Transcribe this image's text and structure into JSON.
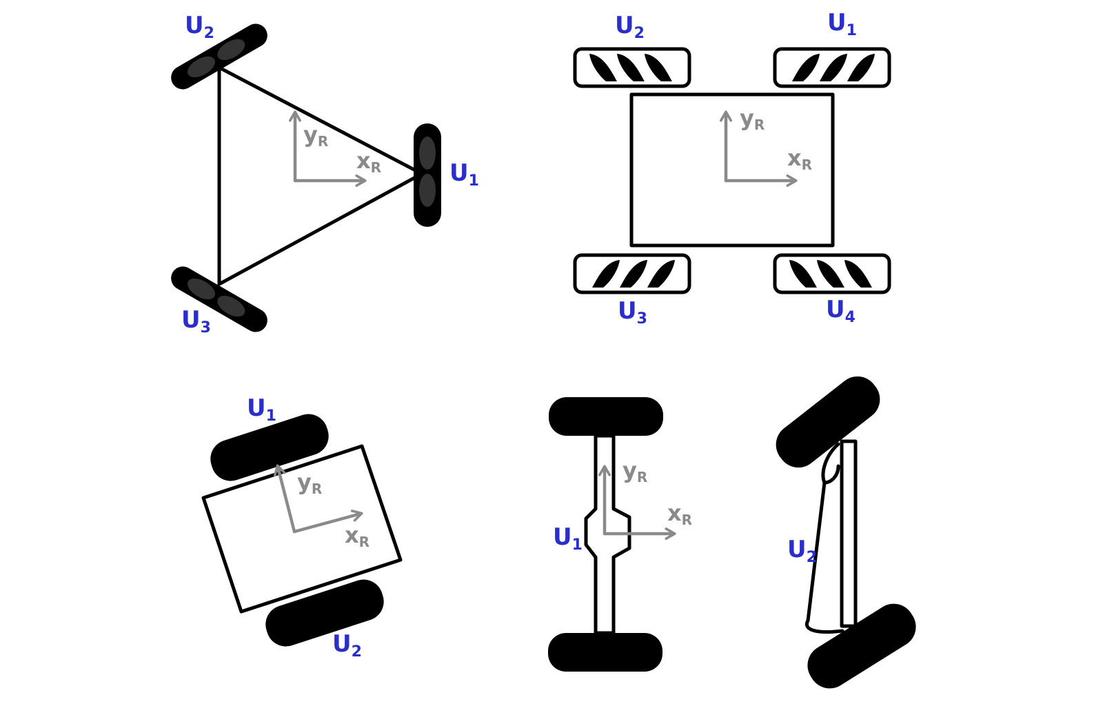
{
  "colors": {
    "wheel_label": "#2b2fc9",
    "axis": "#8a8a8a",
    "outline": "#000000"
  },
  "axes": {
    "x": {
      "main": "x",
      "sub": "R"
    },
    "y": {
      "main": "y",
      "sub": "R"
    }
  },
  "panels": {
    "three_wheel": {
      "labels": [
        {
          "main": "U",
          "sub": "1"
        },
        {
          "main": "U",
          "sub": "2"
        },
        {
          "main": "U",
          "sub": "3"
        }
      ]
    },
    "four_wheel": {
      "labels": [
        {
          "main": "U",
          "sub": "1"
        },
        {
          "main": "U",
          "sub": "2"
        },
        {
          "main": "U",
          "sub": "3"
        },
        {
          "main": "U",
          "sub": "4"
        }
      ]
    },
    "tilted_two_wheel": {
      "labels": [
        {
          "main": "U",
          "sub": "1"
        },
        {
          "main": "U",
          "sub": "2"
        }
      ]
    },
    "axle_front": {
      "labels": [
        {
          "main": "U",
          "sub": "1"
        }
      ]
    },
    "axle_side": {
      "labels": [
        {
          "main": "U",
          "sub": "2"
        }
      ]
    }
  }
}
